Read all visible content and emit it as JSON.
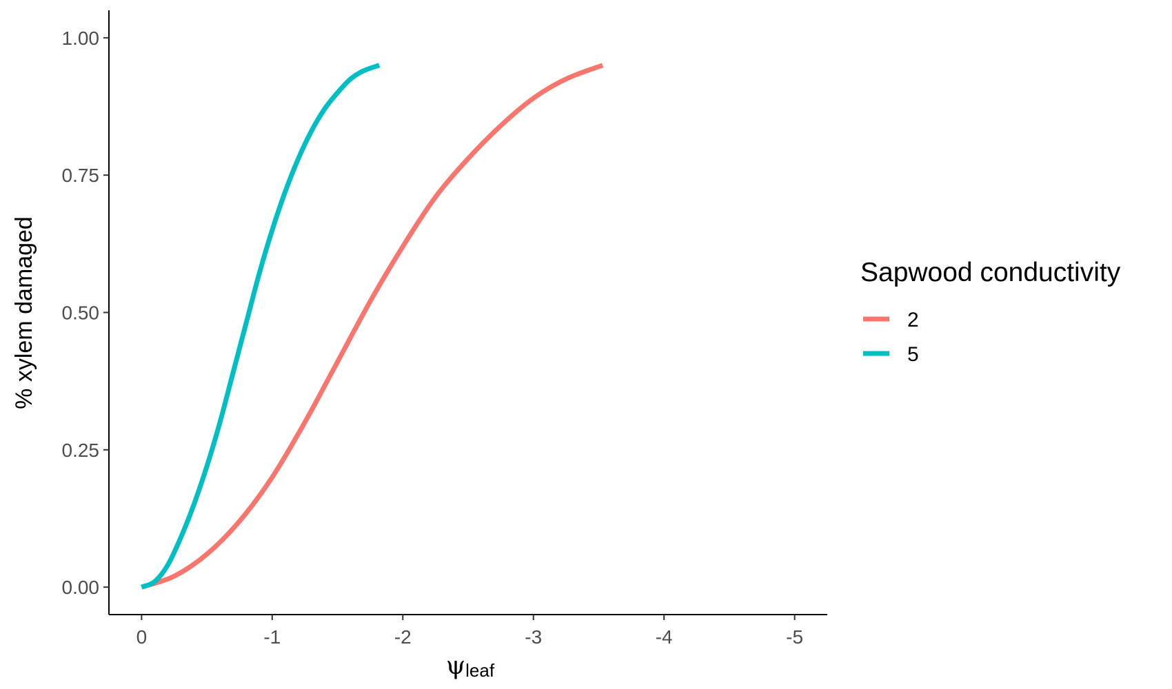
{
  "chart_data": {
    "type": "line",
    "title": "",
    "xlabel_symbol": "ψ",
    "xlabel_subscript": "leaf",
    "ylabel": "% xylem damaged",
    "xlim": [
      0.25,
      -5.25
    ],
    "ylim": [
      -0.05,
      1.05
    ],
    "xticks": [
      0,
      -1,
      -2,
      -3,
      -4,
      -5
    ],
    "xtick_labels": [
      "0",
      "-1",
      "-2",
      "-3",
      "-4",
      "-5"
    ],
    "yticks": [
      0,
      0.25,
      0.5,
      0.75,
      1
    ],
    "ytick_labels": [
      "0.00",
      "0.25",
      "0.50",
      "0.75",
      "1.00"
    ],
    "grid": false,
    "legend": {
      "title": "Sapwood conductivity",
      "placement": "right"
    },
    "series": [
      {
        "name": "2",
        "color": "#F8766D",
        "x": [
          0,
          -0.25,
          -0.5,
          -0.75,
          -1,
          -1.25,
          -1.5,
          -1.75,
          -2,
          -2.25,
          -2.5,
          -2.75,
          -3,
          -3.25,
          -3.53
        ],
        "y": [
          0,
          0.02,
          0.06,
          0.12,
          0.2,
          0.3,
          0.41,
          0.52,
          0.62,
          0.71,
          0.78,
          0.84,
          0.89,
          0.925,
          0.95
        ]
      },
      {
        "name": "5",
        "color": "#00BFC4",
        "x": [
          0,
          -0.1,
          -0.2,
          -0.3,
          -0.4,
          -0.5,
          -0.6,
          -0.7,
          -0.8,
          -0.9,
          -1,
          -1.1,
          -1.2,
          -1.3,
          -1.4,
          -1.5,
          -1.6,
          -1.7,
          -1.82
        ],
        "y": [
          0,
          0.01,
          0.04,
          0.09,
          0.15,
          0.22,
          0.3,
          0.39,
          0.48,
          0.57,
          0.65,
          0.72,
          0.78,
          0.83,
          0.87,
          0.9,
          0.925,
          0.94,
          0.95
        ]
      }
    ]
  }
}
